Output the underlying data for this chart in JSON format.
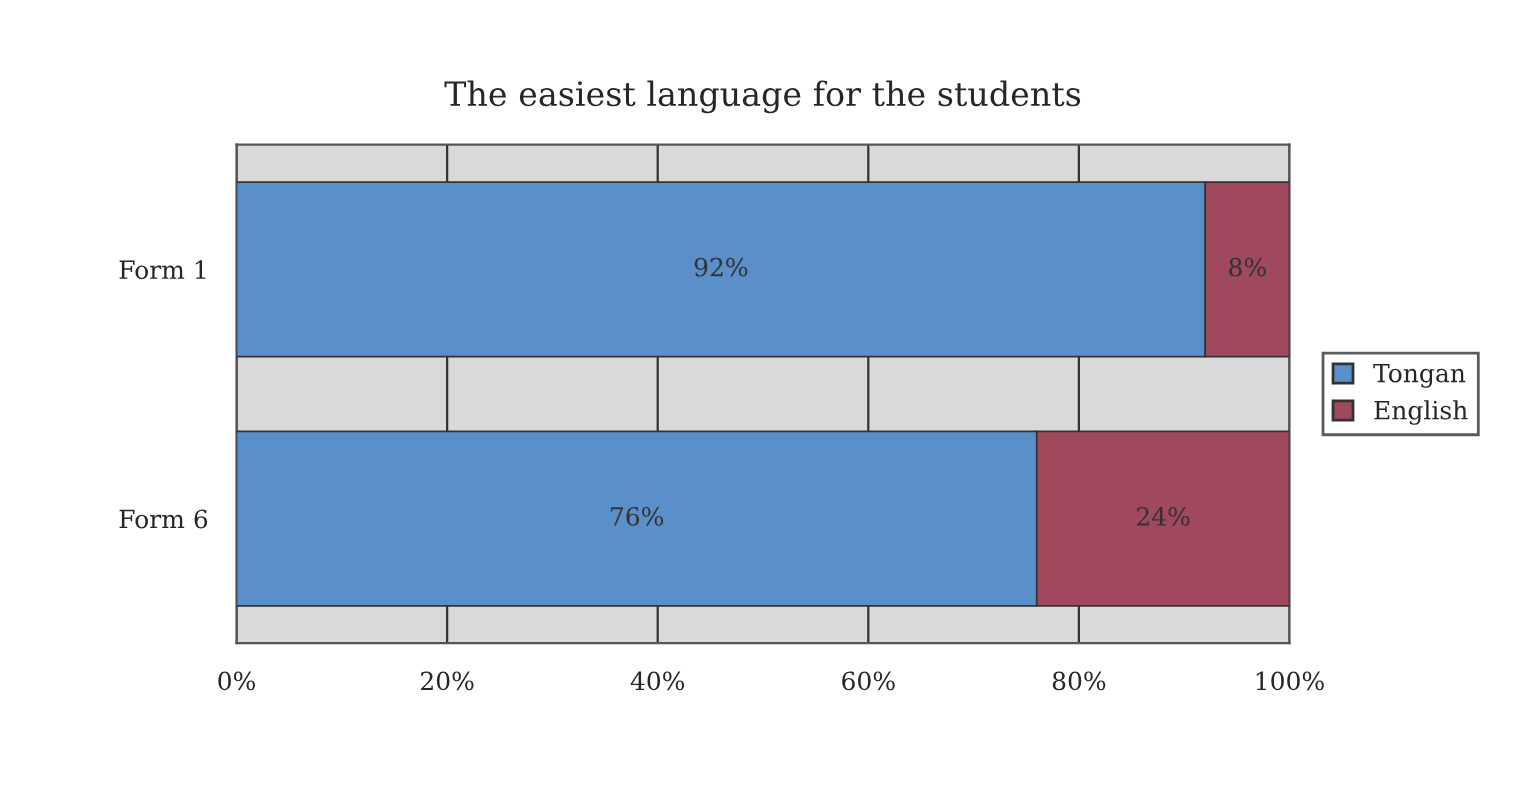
{
  "chart_data": {
    "type": "bar",
    "orientation": "horizontal",
    "stacked": true,
    "title": "The easiest language for the students",
    "categories": [
      "Form 1",
      "Form 6"
    ],
    "series": [
      {
        "name": "Tongan",
        "color": "#5b8fc9",
        "values": [
          92,
          76
        ],
        "value_labels": [
          "92%",
          "76%"
        ]
      },
      {
        "name": "English",
        "color": "#a0485e",
        "values": [
          8,
          24
        ],
        "value_labels": [
          "8%",
          "24%"
        ]
      }
    ],
    "xlim": [
      0,
      100
    ],
    "xticks": [
      {
        "value": 0,
        "label": "0%"
      },
      {
        "value": 20,
        "label": "20%"
      },
      {
        "value": 40,
        "label": "40%"
      },
      {
        "value": 60,
        "label": "60%"
      },
      {
        "value": 80,
        "label": "80%"
      },
      {
        "value": 100,
        "label": "100%"
      }
    ],
    "grid": "x",
    "legend": "right"
  }
}
